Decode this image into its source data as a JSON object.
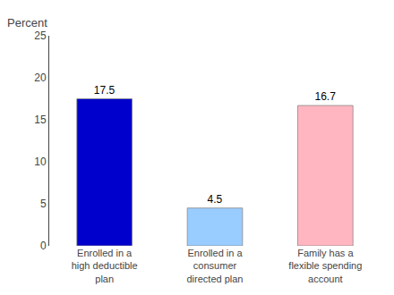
{
  "chart_data": {
    "type": "bar",
    "categories": [
      "Enrolled in a\nhigh deductible\nplan",
      "Enrolled in a\nconsumer\ndirected plan",
      "Family has a\nflexible spending\naccount"
    ],
    "values": [
      17.5,
      4.5,
      16.7
    ],
    "colors": [
      "#0000CC",
      "#99CCFF",
      "#FFB6C1"
    ],
    "ylabel": "Percent",
    "ylim": [
      0,
      25
    ],
    "yticks": [
      0,
      5,
      10,
      15,
      20,
      25
    ],
    "data_labels": true,
    "grid": false
  }
}
